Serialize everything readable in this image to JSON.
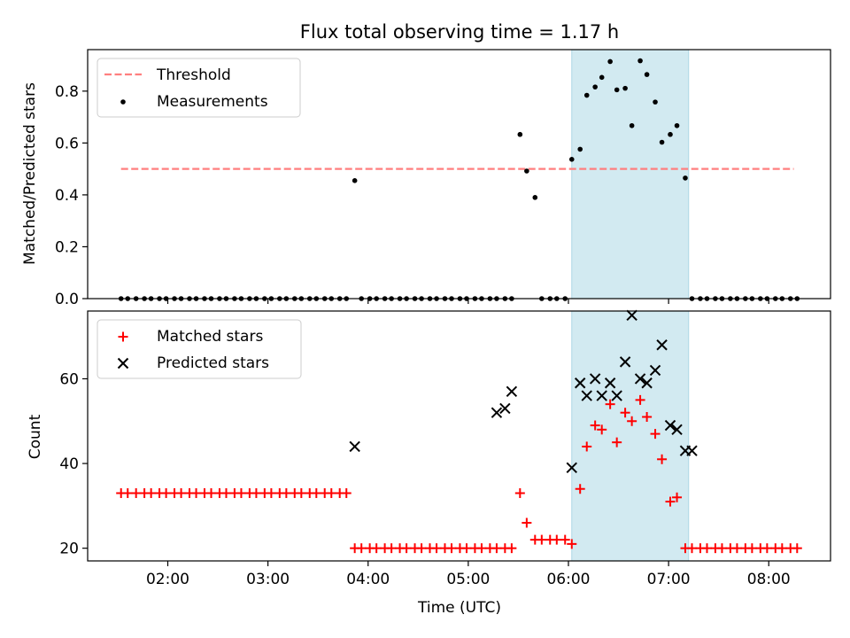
{
  "title": "Flux total observing time = 1.17 h",
  "colors": {
    "threshold": "#ff7f7f",
    "measurement": "#000000",
    "matched": "#ff0000",
    "predicted": "#000000",
    "span_fill": "#add8e6"
  },
  "chart_data": [
    {
      "type": "scatter",
      "ylabel": "Matched/Predicted stars",
      "ylim": [
        0,
        0.96
      ],
      "yticks": [
        "0.0",
        "0.2",
        "0.4",
        "0.6",
        "0.8"
      ],
      "xlim": [
        "01:12",
        "08:37"
      ],
      "shaded_span": [
        "06:02",
        "07:12"
      ],
      "legend_position": "upper left",
      "threshold": {
        "name": "Threshold",
        "value": 0.5,
        "x_range": [
          "01:32",
          "08:15"
        ]
      },
      "series": [
        {
          "name": "Measurements",
          "x": [
            "01:32",
            "01:36",
            "01:41",
            "01:46",
            "01:50",
            "01:55",
            "01:59",
            "02:04",
            "02:08",
            "02:13",
            "02:17",
            "02:22",
            "02:26",
            "02:31",
            "02:35",
            "02:40",
            "02:44",
            "02:49",
            "02:53",
            "02:58",
            "03:02",
            "03:07",
            "03:11",
            "03:16",
            "03:20",
            "03:25",
            "03:29",
            "03:34",
            "03:38",
            "03:43",
            "03:47",
            "03:52",
            "03:56",
            "04:01",
            "04:05",
            "04:10",
            "04:14",
            "04:19",
            "04:23",
            "04:28",
            "04:32",
            "04:37",
            "04:41",
            "04:46",
            "04:50",
            "04:55",
            "04:59",
            "05:04",
            "05:08",
            "05:13",
            "05:17",
            "05:22",
            "05:26",
            "05:31",
            "05:35",
            "05:40",
            "05:44",
            "05:49",
            "05:53",
            "05:58",
            "06:02",
            "06:07",
            "06:11",
            "06:16",
            "06:20",
            "06:25",
            "06:29",
            "06:34",
            "06:38",
            "06:43",
            "06:47",
            "06:52",
            "06:56",
            "07:01",
            "07:05",
            "07:10",
            "07:14",
            "07:19",
            "07:23",
            "07:28",
            "07:32",
            "07:37",
            "07:41",
            "07:46",
            "07:50",
            "07:55",
            "07:59",
            "08:04",
            "08:08",
            "08:13",
            "08:17"
          ],
          "y": [
            0,
            0,
            0,
            0,
            0,
            0,
            0,
            0,
            0,
            0,
            0,
            0,
            0,
            0,
            0,
            0,
            0,
            0,
            0,
            0,
            0,
            0,
            0,
            0,
            0,
            0,
            0,
            0,
            0,
            0,
            0,
            0.455,
            0,
            0,
            0,
            0,
            0,
            0,
            0,
            0,
            0,
            0,
            0,
            0,
            0,
            0,
            0,
            0,
            0,
            0,
            0,
            0,
            0,
            0.633,
            0.492,
            0.39,
            0,
            0,
            0,
            0,
            0.537,
            0.576,
            0.784,
            0.816,
            0.853,
            0.914,
            0.805,
            0.811,
            0.667,
            0.917,
            0.864,
            0.758,
            0.603,
            0.633,
            0.667,
            0.465,
            0,
            0,
            0,
            0,
            0,
            0,
            0,
            0,
            0,
            0,
            0,
            0,
            0,
            0,
            0
          ]
        }
      ]
    },
    {
      "type": "scatter",
      "xlabel": "Time (UTC)",
      "ylabel": "Count",
      "ylim": [
        17,
        76
      ],
      "yticks": [
        "20",
        "40",
        "60"
      ],
      "xticks": [
        "02:00",
        "03:00",
        "04:00",
        "05:00",
        "06:00",
        "07:00",
        "08:00"
      ],
      "xlim": [
        "01:12",
        "08:37"
      ],
      "shaded_span": [
        "06:02",
        "07:12"
      ],
      "legend_position": "upper left",
      "series": [
        {
          "name": "Matched stars",
          "marker": "plus",
          "x": [
            "01:32",
            "01:36",
            "01:41",
            "01:46",
            "01:50",
            "01:55",
            "01:59",
            "02:04",
            "02:08",
            "02:13",
            "02:17",
            "02:22",
            "02:26",
            "02:31",
            "02:35",
            "02:40",
            "02:44",
            "02:49",
            "02:53",
            "02:58",
            "03:02",
            "03:07",
            "03:11",
            "03:16",
            "03:20",
            "03:25",
            "03:29",
            "03:34",
            "03:38",
            "03:43",
            "03:47",
            "03:52",
            "03:56",
            "04:01",
            "04:05",
            "04:10",
            "04:14",
            "04:19",
            "04:23",
            "04:28",
            "04:32",
            "04:37",
            "04:41",
            "04:46",
            "04:50",
            "04:55",
            "04:59",
            "05:04",
            "05:08",
            "05:13",
            "05:17",
            "05:22",
            "05:26",
            "05:31",
            "05:35",
            "05:40",
            "05:44",
            "05:49",
            "05:53",
            "05:58",
            "06:02",
            "06:07",
            "06:11",
            "06:16",
            "06:20",
            "06:25",
            "06:29",
            "06:34",
            "06:38",
            "06:43",
            "06:47",
            "06:52",
            "06:56",
            "07:01",
            "07:05",
            "07:10",
            "07:14",
            "07:19",
            "07:23",
            "07:28",
            "07:32",
            "07:37",
            "07:41",
            "07:46",
            "07:50",
            "07:55",
            "07:59",
            "08:04",
            "08:08",
            "08:13",
            "08:17"
          ],
          "y": [
            33,
            33,
            33,
            33,
            33,
            33,
            33,
            33,
            33,
            33,
            33,
            33,
            33,
            33,
            33,
            33,
            33,
            33,
            33,
            33,
            33,
            33,
            33,
            33,
            33,
            33,
            33,
            33,
            33,
            33,
            33,
            20,
            20,
            20,
            20,
            20,
            20,
            20,
            20,
            20,
            20,
            20,
            20,
            20,
            20,
            20,
            20,
            20,
            20,
            20,
            20,
            20,
            20,
            33,
            26,
            22,
            22,
            22,
            22,
            22,
            21,
            34,
            44,
            49,
            48,
            54,
            45,
            52,
            50,
            55,
            51,
            47,
            41,
            31,
            32,
            20,
            20,
            20,
            20,
            20,
            20,
            20,
            20,
            20,
            20,
            20,
            20,
            20,
            20,
            20,
            20
          ]
        },
        {
          "name": "Predicted stars",
          "marker": "x",
          "x": [
            "03:52",
            "05:17",
            "05:22",
            "05:26",
            "06:02",
            "06:07",
            "06:11",
            "06:16",
            "06:20",
            "06:25",
            "06:29",
            "06:34",
            "06:38",
            "06:43",
            "06:47",
            "06:52",
            "06:56",
            "07:01",
            "07:05",
            "07:10",
            "07:14"
          ],
          "y": [
            44,
            52,
            53,
            57,
            39,
            59,
            56,
            60,
            56,
            59,
            56,
            64,
            75,
            60,
            59,
            62,
            68,
            49,
            48,
            43,
            43
          ]
        }
      ]
    }
  ]
}
